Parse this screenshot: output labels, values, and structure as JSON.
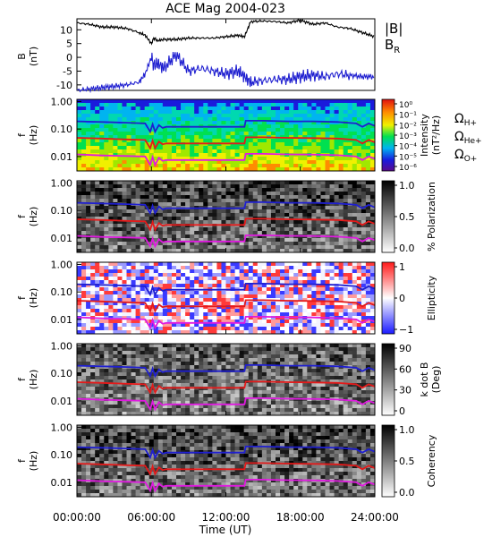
{
  "chart_data": {
    "type": "spectrogram-panels",
    "title": "ACE Mag 2004-023",
    "xlabel": "Time (UT)",
    "x_ticks": [
      "00:00:00",
      "06:00:00",
      "12:00:00",
      "18:00:00",
      "24:00:00"
    ],
    "x_range_hours": [
      0,
      24
    ],
    "top_panel": {
      "type": "line",
      "ylabel": "B",
      "yunit": "(nT)",
      "yticks": [
        "10",
        "5",
        "0",
        "-5",
        "-10"
      ],
      "ylim": [
        -12,
        14
      ],
      "legend": [
        {
          "label": "|B|",
          "color": "#000000"
        },
        {
          "label": "B",
          "sub": "R",
          "color": "#1f1fd0"
        }
      ],
      "series": [
        {
          "name": "|B|",
          "color": "#000000",
          "x": [
            0,
            1,
            2,
            3,
            4,
            5,
            5.5,
            6.0,
            6.2,
            6.5,
            7,
            8,
            9,
            10,
            11,
            12,
            13,
            13.5,
            14,
            15,
            16,
            17,
            18,
            19,
            20,
            21,
            22,
            23,
            24
          ],
          "y": [
            12.5,
            12,
            11,
            11,
            10.5,
            9,
            8,
            5,
            7,
            6,
            6.5,
            6.5,
            7,
            7,
            7,
            7.5,
            8,
            7.5,
            13,
            13.2,
            13,
            12.5,
            13.5,
            12,
            12.5,
            11,
            10.5,
            9,
            7.5
          ]
        },
        {
          "name": "BR",
          "color": "#1f1fd0",
          "x": [
            0,
            1,
            2,
            3,
            4,
            5,
            5.5,
            6.0,
            6.2,
            6.5,
            7,
            8,
            9,
            10,
            11,
            12,
            13,
            13.5,
            14,
            15,
            16,
            17,
            18,
            19,
            20,
            21,
            22,
            23,
            24
          ],
          "y": [
            -12,
            -11.5,
            -11,
            -10.5,
            -10,
            -9,
            -6,
            0,
            -3,
            -2,
            -4,
            1,
            -5,
            -4,
            -5,
            -6,
            -5,
            -7,
            -9,
            -8.5,
            -8,
            -8,
            -7,
            -6.5,
            -7,
            -6,
            -6.5,
            -7,
            -7
          ]
        }
      ]
    },
    "freq_axis": {
      "ylabel": "f",
      "yunit": "(Hz)",
      "ticks": [
        "1.00",
        "0.10",
        "0.01"
      ],
      "log": true,
      "ylim": [
        0.003,
        1.2
      ]
    },
    "gyro_lines": {
      "x": [
        0,
        2,
        4,
        5.5,
        5.9,
        6.1,
        6.3,
        6.6,
        6.9,
        7.2,
        8,
        10,
        12,
        13.5,
        13.6,
        15,
        17,
        19,
        21,
        22.5,
        23,
        23.5,
        24
      ],
      "H+": [
        0.19,
        0.18,
        0.17,
        0.16,
        0.08,
        0.15,
        0.08,
        0.14,
        0.11,
        0.12,
        0.12,
        0.12,
        0.12,
        0.12,
        0.2,
        0.2,
        0.19,
        0.19,
        0.18,
        0.16,
        0.12,
        0.16,
        0.13
      ],
      "He+": [
        0.048,
        0.045,
        0.042,
        0.04,
        0.02,
        0.038,
        0.02,
        0.035,
        0.028,
        0.03,
        0.03,
        0.03,
        0.03,
        0.03,
        0.05,
        0.05,
        0.048,
        0.047,
        0.045,
        0.04,
        0.03,
        0.04,
        0.033
      ],
      "O+": [
        0.012,
        0.011,
        0.0105,
        0.01,
        0.005,
        0.0095,
        0.005,
        0.009,
        0.007,
        0.0075,
        0.0075,
        0.0075,
        0.0075,
        0.0075,
        0.0125,
        0.0125,
        0.012,
        0.0118,
        0.0112,
        0.01,
        0.0075,
        0.01,
        0.0083
      ],
      "colors": {
        "H+": "#1f1fd0",
        "He+": "#e41a1a",
        "O+": "#e01ae0"
      }
    },
    "panels": [
      {
        "id": "intensity",
        "colorbar_label": "Intensity",
        "colorbar_unit": "(nT²/Hz)",
        "colorbar_ticks": [
          "10⁰",
          "10⁻¹",
          "10⁻²",
          "10⁻³",
          "10⁻⁴",
          "10⁻⁵",
          "10⁻⁶"
        ],
        "colormap": "rainbow",
        "gyro_legend": [
          {
            "symbol": "Ω",
            "sub": "H+",
            "color": "#1f1fd0"
          },
          {
            "symbol": "Ω",
            "sub": "He+",
            "color": "#e41a1a"
          },
          {
            "symbol": "Ω",
            "sub": "O+",
            "color": "#e01ae0"
          }
        ]
      },
      {
        "id": "polarization",
        "colorbar_label": "% Polarization",
        "colorbar_ticks": [
          "1.0",
          "0.5",
          "0.0"
        ],
        "colormap": "gray"
      },
      {
        "id": "ellipticity",
        "colorbar_label": "Ellipticity",
        "colorbar_ticks": [
          "1",
          "0",
          "−1"
        ],
        "colormap": "bwr"
      },
      {
        "id": "kdotb",
        "colorbar_label": "k dot B",
        "colorbar_unit": "(Deg)",
        "colorbar_ticks": [
          "90",
          "60",
          "30",
          "0"
        ],
        "colormap": "gray"
      },
      {
        "id": "coherency",
        "colorbar_label": "Coherency",
        "colorbar_ticks": [
          "1.0",
          "0.5",
          "0.0"
        ],
        "colormap": "gray"
      }
    ]
  }
}
